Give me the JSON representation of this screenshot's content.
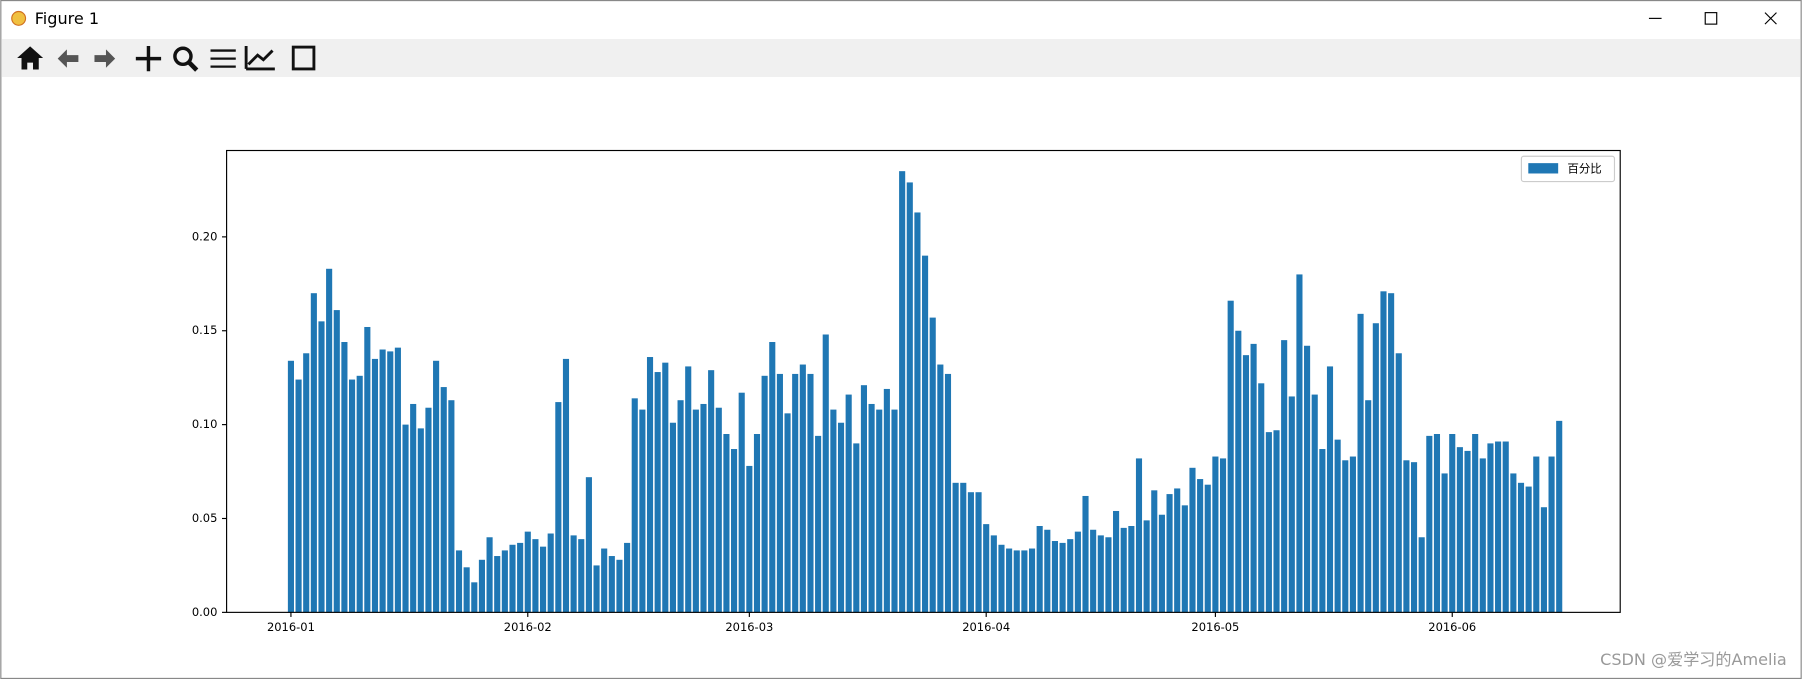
{
  "window": {
    "title": "Figure 1"
  },
  "watermark": "CSDN @爱学习的Amelia",
  "chart_data": {
    "type": "bar",
    "categories": [
      "2016-01",
      null,
      null,
      null,
      null,
      null,
      null,
      null,
      null,
      null,
      null,
      null,
      null,
      null,
      null,
      null,
      null,
      null,
      null,
      null,
      null,
      null,
      null,
      null,
      null,
      null,
      null,
      null,
      null,
      null,
      null,
      "2016-02",
      null,
      null,
      null,
      null,
      null,
      null,
      null,
      null,
      null,
      null,
      null,
      null,
      null,
      null,
      null,
      null,
      null,
      null,
      null,
      null,
      null,
      null,
      null,
      null,
      null,
      null,
      null,
      null,
      "2016-03",
      null,
      null,
      null,
      null,
      null,
      null,
      null,
      null,
      null,
      null,
      null,
      null,
      null,
      null,
      null,
      null,
      null,
      null,
      null,
      null,
      null,
      null,
      null,
      null,
      null,
      null,
      null,
      null,
      null,
      null,
      "2016-04",
      null,
      null,
      null,
      null,
      null,
      null,
      null,
      null,
      null,
      null,
      null,
      null,
      null,
      null,
      null,
      null,
      null,
      null,
      null,
      null,
      null,
      null,
      null,
      null,
      null,
      null,
      null,
      null,
      null,
      "2016-05",
      null,
      null,
      null,
      null,
      null,
      null,
      null,
      null,
      null,
      null,
      null,
      null,
      null,
      null,
      null,
      null,
      null,
      null,
      null,
      null,
      null,
      null,
      null,
      null,
      null,
      null,
      null,
      null,
      null,
      null,
      "2016-06",
      null,
      null,
      null,
      null,
      null,
      null,
      null,
      null,
      null,
      null,
      null,
      null,
      null,
      null
    ],
    "series": [
      {
        "name": "百分比",
        "color": "#1f77b4",
        "values": [
          0.134,
          0.124,
          0.138,
          0.17,
          0.155,
          0.183,
          0.161,
          0.144,
          0.124,
          0.126,
          0.152,
          0.135,
          0.14,
          0.139,
          0.141,
          0.1,
          0.111,
          0.098,
          0.109,
          0.134,
          0.12,
          0.113,
          0.033,
          0.024,
          0.016,
          0.028,
          0.04,
          0.03,
          0.033,
          0.036,
          0.037,
          0.043,
          0.039,
          0.035,
          0.042,
          0.112,
          0.135,
          0.041,
          0.039,
          0.072,
          0.025,
          0.034,
          0.03,
          0.028,
          0.037,
          0.114,
          0.108,
          0.136,
          0.128,
          0.133,
          0.101,
          0.113,
          0.131,
          0.108,
          0.111,
          0.129,
          0.109,
          0.095,
          0.087,
          0.117,
          0.078,
          0.095,
          0.126,
          0.144,
          0.127,
          0.106,
          0.127,
          0.132,
          0.127,
          0.094,
          0.148,
          0.108,
          0.101,
          0.116,
          0.09,
          0.121,
          0.111,
          0.108,
          0.119,
          0.108,
          0.235,
          0.229,
          0.213,
          0.19,
          0.157,
          0.132,
          0.127,
          0.069,
          0.069,
          0.064,
          0.064,
          0.047,
          0.041,
          0.036,
          0.034,
          0.033,
          0.033,
          0.034,
          0.046,
          0.044,
          0.038,
          0.037,
          0.039,
          0.043,
          0.062,
          0.044,
          0.041,
          0.04,
          0.054,
          0.045,
          0.046,
          0.082,
          0.049,
          0.065,
          0.052,
          0.063,
          0.066,
          0.057,
          0.077,
          0.071,
          0.068,
          0.083,
          0.082,
          0.166,
          0.15,
          0.137,
          0.143,
          0.122,
          0.096,
          0.097,
          0.145,
          0.115,
          0.18,
          0.142,
          0.116,
          0.087,
          0.131,
          0.092,
          0.081,
          0.083,
          0.159,
          0.113,
          0.154,
          0.171,
          0.17,
          0.138,
          0.081,
          0.08,
          0.04,
          0.094,
          0.095,
          0.074,
          0.095,
          0.088,
          0.086,
          0.095,
          0.082,
          0.09,
          0.091,
          0.091,
          0.074,
          0.069,
          0.067,
          0.083,
          0.056,
          0.083,
          0.102
        ]
      }
    ],
    "ylim": [
      0,
      0.246
    ],
    "yticks": [
      {
        "value": 0,
        "label": "0.00"
      },
      {
        "value": 0.05,
        "label": "0.05"
      },
      {
        "value": 0.1,
        "label": "0.10"
      },
      {
        "value": 0.15,
        "label": "0.15"
      },
      {
        "value": 0.2,
        "label": "0.20"
      }
    ],
    "legend": "upper right"
  }
}
